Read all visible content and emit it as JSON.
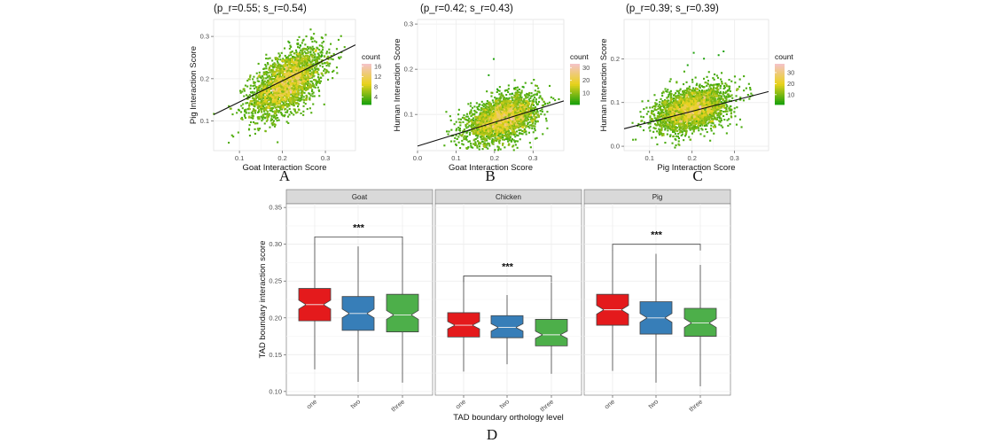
{
  "colors": {
    "panel_bg": "#ffffff",
    "grid": "#ececec",
    "axis_text": "#4d4d4d",
    "strip_bg": "#d9d9d9",
    "strip_border": "#7f7f7f",
    "box_one": "#e41a1c",
    "box_two": "#377eb8",
    "box_three": "#4daf4a",
    "hex_low": "#1fa20c",
    "hex_mid": "#e8d21c",
    "hex_high": "#f4c4c4"
  },
  "chart_data": [
    {
      "type": "scatter",
      "panel_label": "A",
      "title": "(p_r=0.55; s_r=0.54)",
      "xlabel": "Goat Interaction Score",
      "ylabel": "Pig Interaction Score",
      "xlim": [
        0.04,
        0.37
      ],
      "ylim": [
        0.03,
        0.34
      ],
      "xticks": [
        0.1,
        0.2,
        0.3
      ],
      "xtick_labels": [
        "0.1",
        "0.2",
        "0.3"
      ],
      "yticks": [
        0.1,
        0.2,
        0.3
      ],
      "ytick_labels": [
        "0.1",
        "0.2",
        "0.3"
      ],
      "cloud": {
        "cx": 0.21,
        "cy": 0.19,
        "sx": 0.042,
        "sy": 0.04,
        "rho": 0.55
      },
      "regression": {
        "x": [
          0.04,
          0.37
        ],
        "y": [
          0.115,
          0.28
        ]
      },
      "legend": {
        "title": "count",
        "labels": [
          "16",
          "12",
          "8",
          "4"
        ],
        "values": [
          16,
          12,
          8,
          4
        ],
        "max": 17,
        "min": 1
      },
      "grid": true
    },
    {
      "type": "scatter",
      "panel_label": "B",
      "title": "(p_r=0.42; s_r=0.43)",
      "xlabel": "Goat Interaction Score",
      "ylabel": "Human Interaction Score",
      "xlim": [
        0.0,
        0.38
      ],
      "ylim": [
        0.02,
        0.31
      ],
      "xticks": [
        0.0,
        0.1,
        0.2,
        0.3
      ],
      "xtick_labels": [
        "0.0",
        "0.1",
        "0.2",
        "0.3"
      ],
      "yticks": [
        0.1,
        0.2,
        0.3
      ],
      "ytick_labels": [
        "0.1",
        "0.2",
        "0.3"
      ],
      "cloud": {
        "cx": 0.22,
        "cy": 0.09,
        "sx": 0.045,
        "sy": 0.026,
        "rho": 0.42
      },
      "regression": {
        "x": [
          0.0,
          0.38
        ],
        "y": [
          0.03,
          0.13
        ]
      },
      "legend": {
        "title": "count",
        "labels": [
          "30",
          "20",
          "10"
        ],
        "values": [
          30,
          20,
          10
        ],
        "max": 33,
        "min": 1
      },
      "grid": true
    },
    {
      "type": "scatter",
      "panel_label": "C",
      "title": "(p_r=0.39; s_r=0.39)",
      "xlabel": "Pig Interaction Score",
      "ylabel": "Human Interaction Score",
      "xlim": [
        0.04,
        0.38
      ],
      "ylim": [
        -0.01,
        0.29
      ],
      "xticks": [
        0.1,
        0.2,
        0.3
      ],
      "xtick_labels": [
        "0.1",
        "0.2",
        "0.3"
      ],
      "yticks": [
        0.0,
        0.1,
        0.2
      ],
      "ytick_labels": [
        "0.0",
        "0.1",
        "0.2"
      ],
      "cloud": {
        "cx": 0.2,
        "cy": 0.085,
        "sx": 0.043,
        "sy": 0.026,
        "rho": 0.39
      },
      "regression": {
        "x": [
          0.04,
          0.38
        ],
        "y": [
          0.04,
          0.125
        ]
      },
      "legend": {
        "title": "count",
        "labels": [
          "30",
          "20",
          "10"
        ],
        "values": [
          30,
          20,
          10
        ],
        "max": 38,
        "min": 1
      },
      "grid": true
    },
    {
      "type": "boxplot",
      "panel_label": "D",
      "xlabel": "TAD boundary orthology level",
      "ylabel": "TAD boundary interaction score",
      "ylim": [
        0.095,
        0.355
      ],
      "yticks": [
        0.1,
        0.15,
        0.2,
        0.25,
        0.3,
        0.35
      ],
      "ytick_labels": [
        "0.10",
        "0.15",
        "0.20",
        "0.25",
        "0.30",
        "0.35"
      ],
      "categories": [
        "one",
        "two",
        "three"
      ],
      "grid": true,
      "facets": [
        {
          "name": "Goat",
          "boxes": [
            {
              "category": "one",
              "min": 0.13,
              "q1": 0.196,
              "median": 0.218,
              "q3": 0.24,
              "max": 0.302,
              "notch": 0.006
            },
            {
              "category": "two",
              "min": 0.113,
              "q1": 0.183,
              "median": 0.206,
              "q3": 0.229,
              "max": 0.297,
              "notch": 0.006
            },
            {
              "category": "three",
              "min": 0.112,
              "q1": 0.181,
              "median": 0.204,
              "q3": 0.232,
              "max": 0.302,
              "notch": 0.006
            }
          ],
          "significance": {
            "label": "***",
            "from": "one",
            "to": "three",
            "y": 0.31
          }
        },
        {
          "name": "Chicken",
          "boxes": [
            {
              "category": "one",
              "min": 0.127,
              "q1": 0.174,
              "median": 0.19,
              "q3": 0.207,
              "max": 0.256,
              "notch": 0.005
            },
            {
              "category": "two",
              "min": 0.137,
              "q1": 0.173,
              "median": 0.187,
              "q3": 0.203,
              "max": 0.231,
              "notch": 0.005
            },
            {
              "category": "three",
              "min": 0.124,
              "q1": 0.162,
              "median": 0.177,
              "q3": 0.198,
              "max": 0.248,
              "notch": 0.005
            }
          ],
          "significance": {
            "label": "***",
            "from": "one",
            "to": "three",
            "y": 0.257
          }
        },
        {
          "name": "Pig",
          "boxes": [
            {
              "category": "one",
              "min": 0.128,
              "q1": 0.19,
              "median": 0.211,
              "q3": 0.232,
              "max": 0.292,
              "notch": 0.006
            },
            {
              "category": "two",
              "min": 0.112,
              "q1": 0.178,
              "median": 0.2,
              "q3": 0.222,
              "max": 0.287,
              "notch": 0.006
            },
            {
              "category": "three",
              "min": 0.107,
              "q1": 0.175,
              "median": 0.193,
              "q3": 0.213,
              "max": 0.272,
              "notch": 0.006
            }
          ],
          "significance": {
            "label": "***",
            "from": "one",
            "to": "three",
            "y": 0.3
          }
        }
      ]
    }
  ]
}
